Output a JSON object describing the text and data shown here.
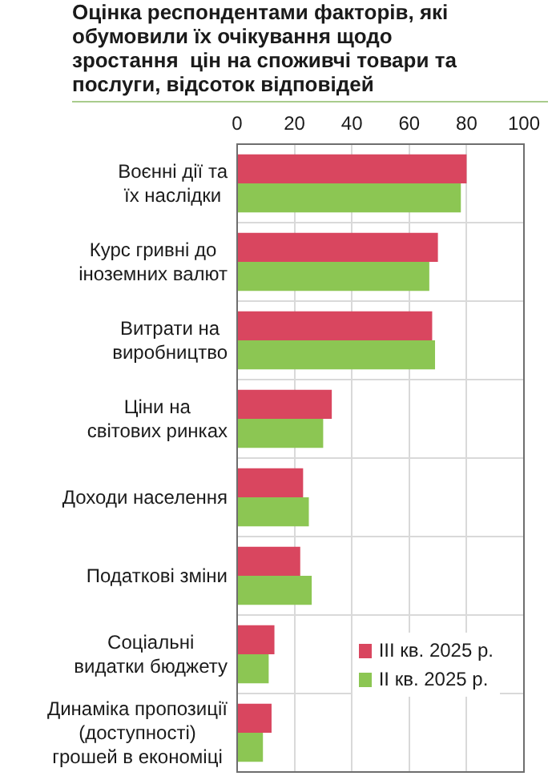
{
  "chart_data": {
    "type": "bar",
    "orientation": "horizontal",
    "title": "Оцінка респондентами факторів, які обумовили їх очікування щодо зростання  цін на споживчі товари та послуги, відсоток відповідей",
    "categories": [
      "Воєнні дії та їх наслідки",
      "Курс гривні до іноземних валют",
      "Витрати на виробництво",
      "Ціни на світових ринках",
      "Доходи населення",
      "Податкові зміни",
      "Соціальні видатки бюджету",
      "Динаміка пропозиції (доступності) грошей в економіці"
    ],
    "series": [
      {
        "name": "III кв. 2025 р.",
        "color": "#d9465f",
        "values": [
          80,
          70,
          68,
          33,
          23,
          22,
          13,
          12
        ]
      },
      {
        "name": "II кв. 2025 р.",
        "color": "#8cc653",
        "values": [
          78,
          67,
          69,
          30,
          25,
          26,
          11,
          9
        ]
      }
    ],
    "xlim": [
      0,
      100
    ],
    "xticks": [
      0,
      20,
      40,
      60,
      80,
      100
    ],
    "grid": true,
    "legend": "bottom right"
  }
}
